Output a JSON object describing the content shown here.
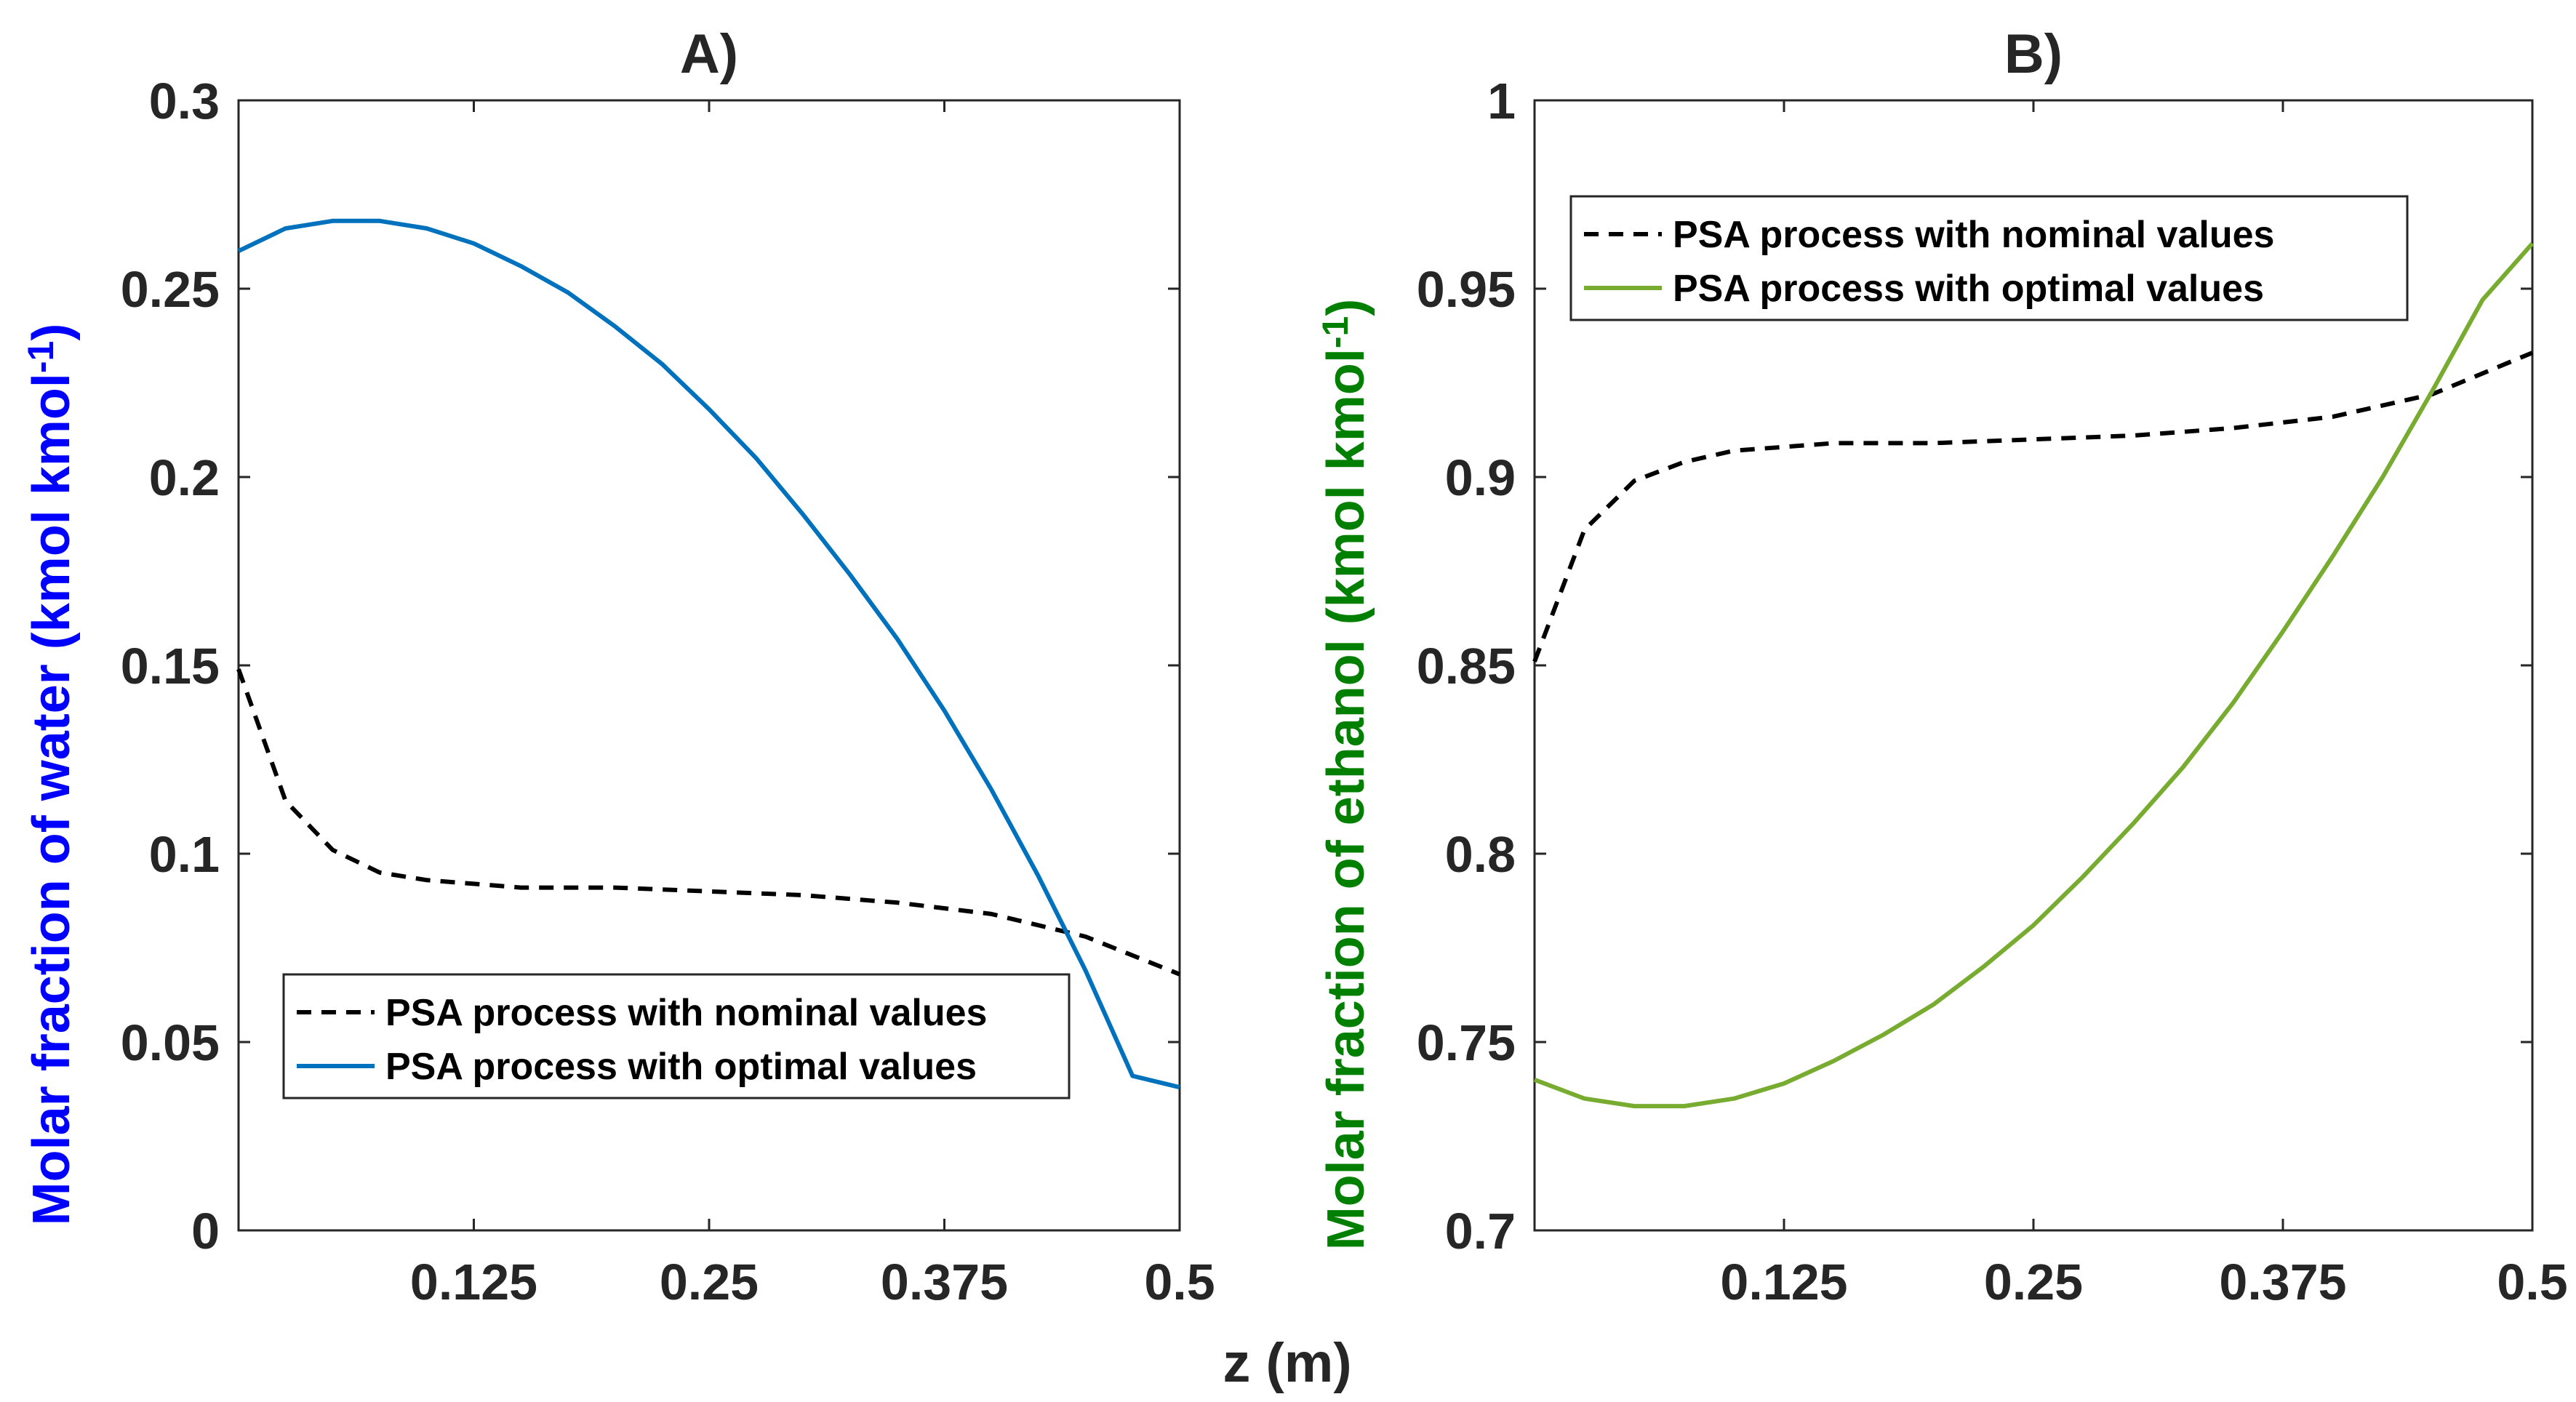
{
  "shared_xlabel": "z (m)",
  "chart_data": [
    {
      "type": "line",
      "title": "A)",
      "xlabel": "z (m)",
      "ylabel": "Molar fraction of water (kmol kmol",
      "ylabel_sup": "-1",
      "ylabel_end": ")",
      "ylabel_color": "#0000ff",
      "xlim": [
        0.0,
        0.5
      ],
      "ylim": [
        0,
        0.3
      ],
      "xticks": [
        0.125,
        0.25,
        0.375,
        0.5
      ],
      "xtick_labels": [
        "0.125",
        "0.25",
        "0.375",
        "0.5"
      ],
      "yticks": [
        0,
        0.05,
        0.1,
        0.15,
        0.2,
        0.25,
        0.3
      ],
      "ytick_labels": [
        "0",
        "0.05",
        "0.1",
        "0.15",
        "0.2",
        "0.25",
        "0.3"
      ],
      "grid": false,
      "legend_position": "lower-center",
      "series": [
        {
          "name": "PSA process with nominal values",
          "color": "#000000",
          "dash": true,
          "x": [
            0.0,
            0.025,
            0.05,
            0.075,
            0.1,
            0.125,
            0.15,
            0.2,
            0.25,
            0.3,
            0.35,
            0.4,
            0.45,
            0.5
          ],
          "y": [
            0.149,
            0.114,
            0.101,
            0.095,
            0.093,
            0.092,
            0.091,
            0.091,
            0.09,
            0.089,
            0.087,
            0.084,
            0.078,
            0.068
          ]
        },
        {
          "name": "PSA process with optimal values",
          "color": "#0072bd",
          "dash": false,
          "x": [
            0.0,
            0.025,
            0.05,
            0.075,
            0.1,
            0.125,
            0.15,
            0.175,
            0.2,
            0.225,
            0.25,
            0.275,
            0.3,
            0.325,
            0.35,
            0.375,
            0.4,
            0.425,
            0.45,
            0.475,
            0.5
          ],
          "y": [
            0.26,
            0.266,
            0.268,
            0.268,
            0.266,
            0.262,
            0.256,
            0.249,
            0.24,
            0.23,
            0.218,
            0.205,
            0.19,
            0.174,
            0.157,
            0.138,
            0.117,
            0.094,
            0.069,
            0.041,
            0.038
          ]
        }
      ]
    },
    {
      "type": "line",
      "title": "B)",
      "xlabel": "z (m)",
      "ylabel": "Molar fraction of ethanol (kmol kmol",
      "ylabel_sup": "-1",
      "ylabel_end": ")",
      "ylabel_color": "#007f00",
      "xlim": [
        0.0,
        0.5
      ],
      "ylim": [
        0.7,
        1.0
      ],
      "xticks": [
        0.125,
        0.25,
        0.375,
        0.5
      ],
      "xtick_labels": [
        "0.125",
        "0.25",
        "0.375",
        "0.5"
      ],
      "yticks": [
        0.7,
        0.75,
        0.8,
        0.85,
        0.9,
        0.95,
        1.0
      ],
      "ytick_labels": [
        "0.7",
        "0.75",
        "0.8",
        "0.85",
        "0.9",
        "0.95",
        "1"
      ],
      "grid": false,
      "legend_position": "top-right",
      "series": [
        {
          "name": "PSA process with nominal values",
          "color": "#000000",
          "dash": true,
          "x": [
            0.0,
            0.025,
            0.05,
            0.075,
            0.1,
            0.125,
            0.15,
            0.2,
            0.25,
            0.3,
            0.35,
            0.4,
            0.45,
            0.5
          ],
          "y": [
            0.851,
            0.886,
            0.899,
            0.904,
            0.907,
            0.908,
            0.909,
            0.909,
            0.91,
            0.911,
            0.913,
            0.916,
            0.922,
            0.933
          ]
        },
        {
          "name": "PSA process with optimal values",
          "color": "#77ac30",
          "dash": false,
          "x": [
            0.0,
            0.025,
            0.05,
            0.075,
            0.1,
            0.125,
            0.15,
            0.175,
            0.2,
            0.225,
            0.25,
            0.275,
            0.3,
            0.325,
            0.35,
            0.375,
            0.4,
            0.425,
            0.45,
            0.475,
            0.5
          ],
          "y": [
            0.74,
            0.735,
            0.733,
            0.733,
            0.735,
            0.739,
            0.745,
            0.752,
            0.76,
            0.77,
            0.781,
            0.794,
            0.808,
            0.823,
            0.84,
            0.859,
            0.879,
            0.9,
            0.923,
            0.947,
            0.962
          ]
        }
      ]
    }
  ]
}
